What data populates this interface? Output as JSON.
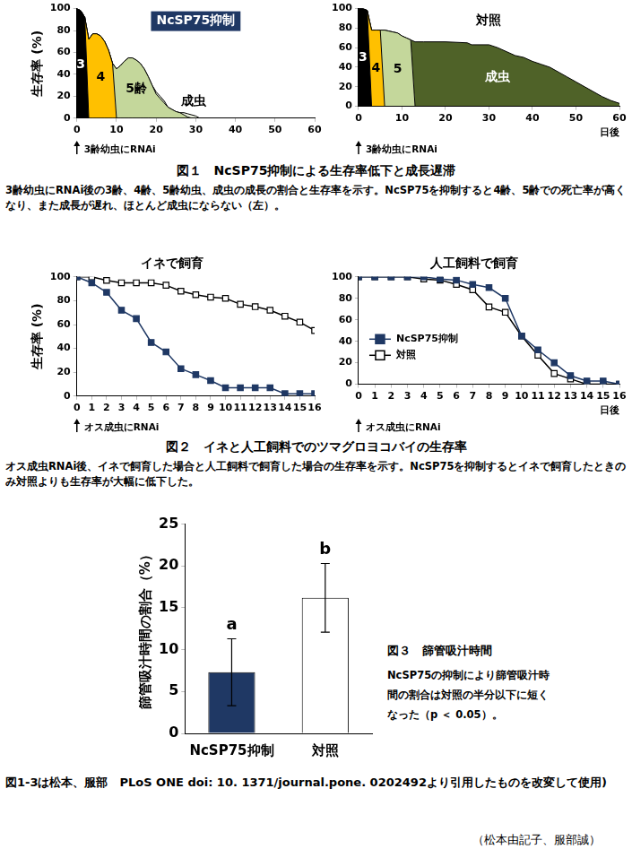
{
  "chart_data": [
    {
      "type": "area",
      "title": "NcSP75抑制",
      "y_label": "生存率 (%)",
      "annotation": "3齢幼虫にRNAi",
      "stacked": true,
      "grid": false,
      "x": [
        0,
        1,
        2,
        3,
        4,
        5,
        6,
        7,
        8,
        9,
        10,
        11,
        12,
        13,
        14,
        15,
        16,
        17,
        18,
        19,
        20,
        21,
        22,
        23,
        24,
        25,
        26,
        27,
        28,
        29,
        30,
        31
      ],
      "xlim": [
        0,
        60
      ],
      "xticks": [
        0,
        10,
        20,
        30,
        40,
        50,
        60
      ],
      "ylim": [
        0,
        100
      ],
      "yticks": [
        0,
        20,
        40,
        60,
        80,
        100
      ],
      "series": [
        {
          "name": "3",
          "color": "#000000",
          "values": [
            100,
            98,
            92,
            0,
            0,
            0,
            0,
            0,
            0,
            0,
            0,
            0,
            0,
            0,
            0,
            0,
            0,
            0,
            0,
            0,
            0,
            0,
            0,
            0,
            0,
            0,
            0,
            0,
            0,
            0,
            0,
            0
          ]
        },
        {
          "name": "4",
          "color": "#ffc000",
          "values": [
            0,
            0,
            0,
            72,
            77,
            77,
            75,
            70,
            62,
            50,
            0,
            0,
            0,
            0,
            0,
            0,
            0,
            0,
            0,
            0,
            0,
            0,
            0,
            0,
            0,
            0,
            0,
            0,
            0,
            0,
            0,
            0
          ]
        },
        {
          "name": "5齢",
          "color": "#c4d79b",
          "values": [
            0,
            0,
            0,
            0,
            0,
            0,
            0,
            0,
            0,
            0,
            45,
            48,
            52,
            55,
            55,
            53,
            50,
            45,
            38,
            30,
            22,
            18,
            14,
            10,
            8,
            6,
            5,
            3,
            1,
            0,
            0,
            0
          ]
        },
        {
          "name": "成虫",
          "color": "#ebf1de",
          "values": [
            0,
            0,
            0,
            0,
            0,
            0,
            0,
            0,
            0,
            0,
            0,
            0,
            0,
            0,
            0,
            0,
            0,
            0,
            0,
            0,
            2,
            2,
            2,
            0,
            0,
            0,
            0,
            2,
            3,
            3,
            2,
            0
          ]
        }
      ]
    },
    {
      "type": "area",
      "title": "対照",
      "x_label": "日後",
      "annotation": "3齢幼虫にRNAi",
      "stacked": true,
      "grid": false,
      "x": [
        0,
        1,
        2,
        3,
        4,
        5,
        6,
        7,
        8,
        9,
        10,
        11,
        12,
        13,
        15,
        20,
        25,
        26,
        30,
        32,
        34,
        36,
        38,
        40,
        42,
        44,
        46,
        48,
        50,
        52,
        54,
        56,
        58,
        60
      ],
      "xlim": [
        0,
        60
      ],
      "xticks": [
        0,
        10,
        20,
        30,
        40,
        50,
        60
      ],
      "ylim": [
        0,
        100
      ],
      "yticks": [
        0,
        20,
        40,
        60,
        80,
        100
      ],
      "series": [
        {
          "name": "3",
          "color": "#000000",
          "values": [
            100,
            100,
            98,
            0,
            0,
            0,
            0,
            0,
            0,
            0,
            0,
            0,
            0,
            0,
            0,
            0,
            0,
            0,
            0,
            0,
            0,
            0,
            0,
            0,
            0,
            0,
            0,
            0,
            0,
            0,
            0,
            0,
            0,
            0
          ]
        },
        {
          "name": "4",
          "color": "#ffc000",
          "values": [
            0,
            0,
            0,
            78,
            78,
            78,
            0,
            0,
            0,
            0,
            0,
            0,
            0,
            0,
            0,
            0,
            0,
            0,
            0,
            0,
            0,
            0,
            0,
            0,
            0,
            0,
            0,
            0,
            0,
            0,
            0,
            0,
            0,
            0
          ]
        },
        {
          "name": "5",
          "color": "#c4d79b",
          "values": [
            0,
            0,
            0,
            0,
            0,
            0,
            78,
            77,
            76,
            75,
            72,
            70,
            68,
            0,
            0,
            0,
            0,
            0,
            0,
            0,
            0,
            0,
            0,
            0,
            0,
            0,
            0,
            0,
            0,
            0,
            0,
            0,
            0,
            0
          ]
        },
        {
          "name": "成虫",
          "color": "#4f6228",
          "values": [
            0,
            0,
            0,
            0,
            0,
            0,
            0,
            0,
            0,
            0,
            0,
            0,
            0,
            66,
            66,
            66,
            65,
            63,
            63,
            60,
            56,
            52,
            50,
            46,
            43,
            40,
            35,
            30,
            25,
            20,
            15,
            10,
            6,
            3
          ]
        }
      ]
    },
    {
      "type": "line",
      "title": "イネで飼育",
      "y_label": "生存率 (%)",
      "annotation": "オス成虫にRNAi",
      "grid": false,
      "x": [
        0,
        1,
        2,
        3,
        4,
        5,
        6,
        7,
        8,
        9,
        10,
        11,
        12,
        13,
        14,
        15,
        16
      ],
      "xlim": [
        0,
        16
      ],
      "xticks": [
        0,
        1,
        2,
        3,
        4,
        5,
        6,
        7,
        8,
        9,
        10,
        11,
        12,
        13,
        14,
        15,
        16
      ],
      "ylim": [
        0,
        100
      ],
      "yticks": [
        0,
        20,
        40,
        60,
        80,
        100
      ],
      "series": [
        {
          "name": "NcSP75抑制",
          "color": "#1f3864",
          "marker": "filled_square",
          "values": [
            100,
            95,
            87,
            72,
            65,
            45,
            37,
            23,
            18,
            13,
            7,
            7,
            7,
            7,
            2,
            2,
            2
          ]
        },
        {
          "name": "対照",
          "color": "#000000",
          "marker": "open_square",
          "values": [
            100,
            100,
            97,
            95,
            95,
            95,
            93,
            88,
            85,
            83,
            82,
            77,
            75,
            72,
            67,
            62,
            55
          ]
        }
      ]
    },
    {
      "type": "line",
      "title": "人工飼料で飼育",
      "x_label": "日後",
      "annotation": "オス成虫にRNAi",
      "grid": false,
      "legend": "left",
      "x": [
        0,
        1,
        2,
        3,
        4,
        5,
        6,
        7,
        8,
        9,
        10,
        11,
        12,
        13,
        14,
        15,
        16
      ],
      "xlim": [
        0,
        16
      ],
      "xticks": [
        0,
        1,
        2,
        3,
        4,
        5,
        6,
        7,
        8,
        9,
        10,
        11,
        12,
        13,
        14,
        15,
        16
      ],
      "ylim": [
        0,
        100
      ],
      "yticks": [
        0,
        20,
        40,
        60,
        80,
        100
      ],
      "series": [
        {
          "name": "NcSP75抑制",
          "color": "#1f3864",
          "marker": "filled_square",
          "values": [
            100,
            100,
            100,
            100,
            100,
            98,
            97,
            93,
            90,
            80,
            45,
            32,
            20,
            8,
            3,
            3,
            0
          ]
        },
        {
          "name": "対照",
          "color": "#000000",
          "marker": "open_square",
          "values": [
            100,
            100,
            100,
            100,
            98,
            97,
            93,
            88,
            72,
            67,
            45,
            27,
            10,
            5,
            0,
            0,
            0
          ]
        }
      ]
    },
    {
      "type": "bar",
      "y_label": "篩管吸汁時間の割合（%）",
      "grid": false,
      "categories": [
        "NcSP75抑制",
        "対照"
      ],
      "values": [
        7.3,
        16.2
      ],
      "errors": [
        4.0,
        4.1
      ],
      "colors": [
        "#1f3864",
        "#ffffff"
      ],
      "annotations": [
        "a",
        "b"
      ],
      "ylim": [
        0,
        25
      ],
      "yticks": [
        0,
        5,
        10,
        15,
        20,
        25
      ]
    }
  ],
  "figures": [
    {
      "caption": "図１　NcSP75抑制による生存率低下と成長遅滞",
      "description": "3齢幼虫にRNAi後の3齢、4齢、5齢幼虫、成虫の成長の割合と生存率を示す。NcSP75を抑制すると4齢、5齢での死亡率が高くなり、また成長が遅れ、ほとんど成虫にならない（左）。"
    },
    {
      "caption": "図２　イネと人工飼料でのツマグロヨコバイの生存率",
      "description": "オス成虫RNAi後、イネで飼育した場合と人工飼料で飼育した場合の生存率を示す。NcSP75を抑制するとイネで飼育したときのみ対照よりも生存率が大幅に低下した。"
    },
    {
      "caption": "図３　篩管吸汁時間",
      "description": "NcSP75の抑制により篩管吸汁時間の割合は対照の半分以下に短くなった（p ＜ 0.05）。"
    }
  ],
  "source": "図1-3は松本、服部　PLoS ONE doi: 10. 1371/journal.pone. 0202492より引用したものを改変して使用)",
  "authors": "（松本由記子、服部誠）"
}
